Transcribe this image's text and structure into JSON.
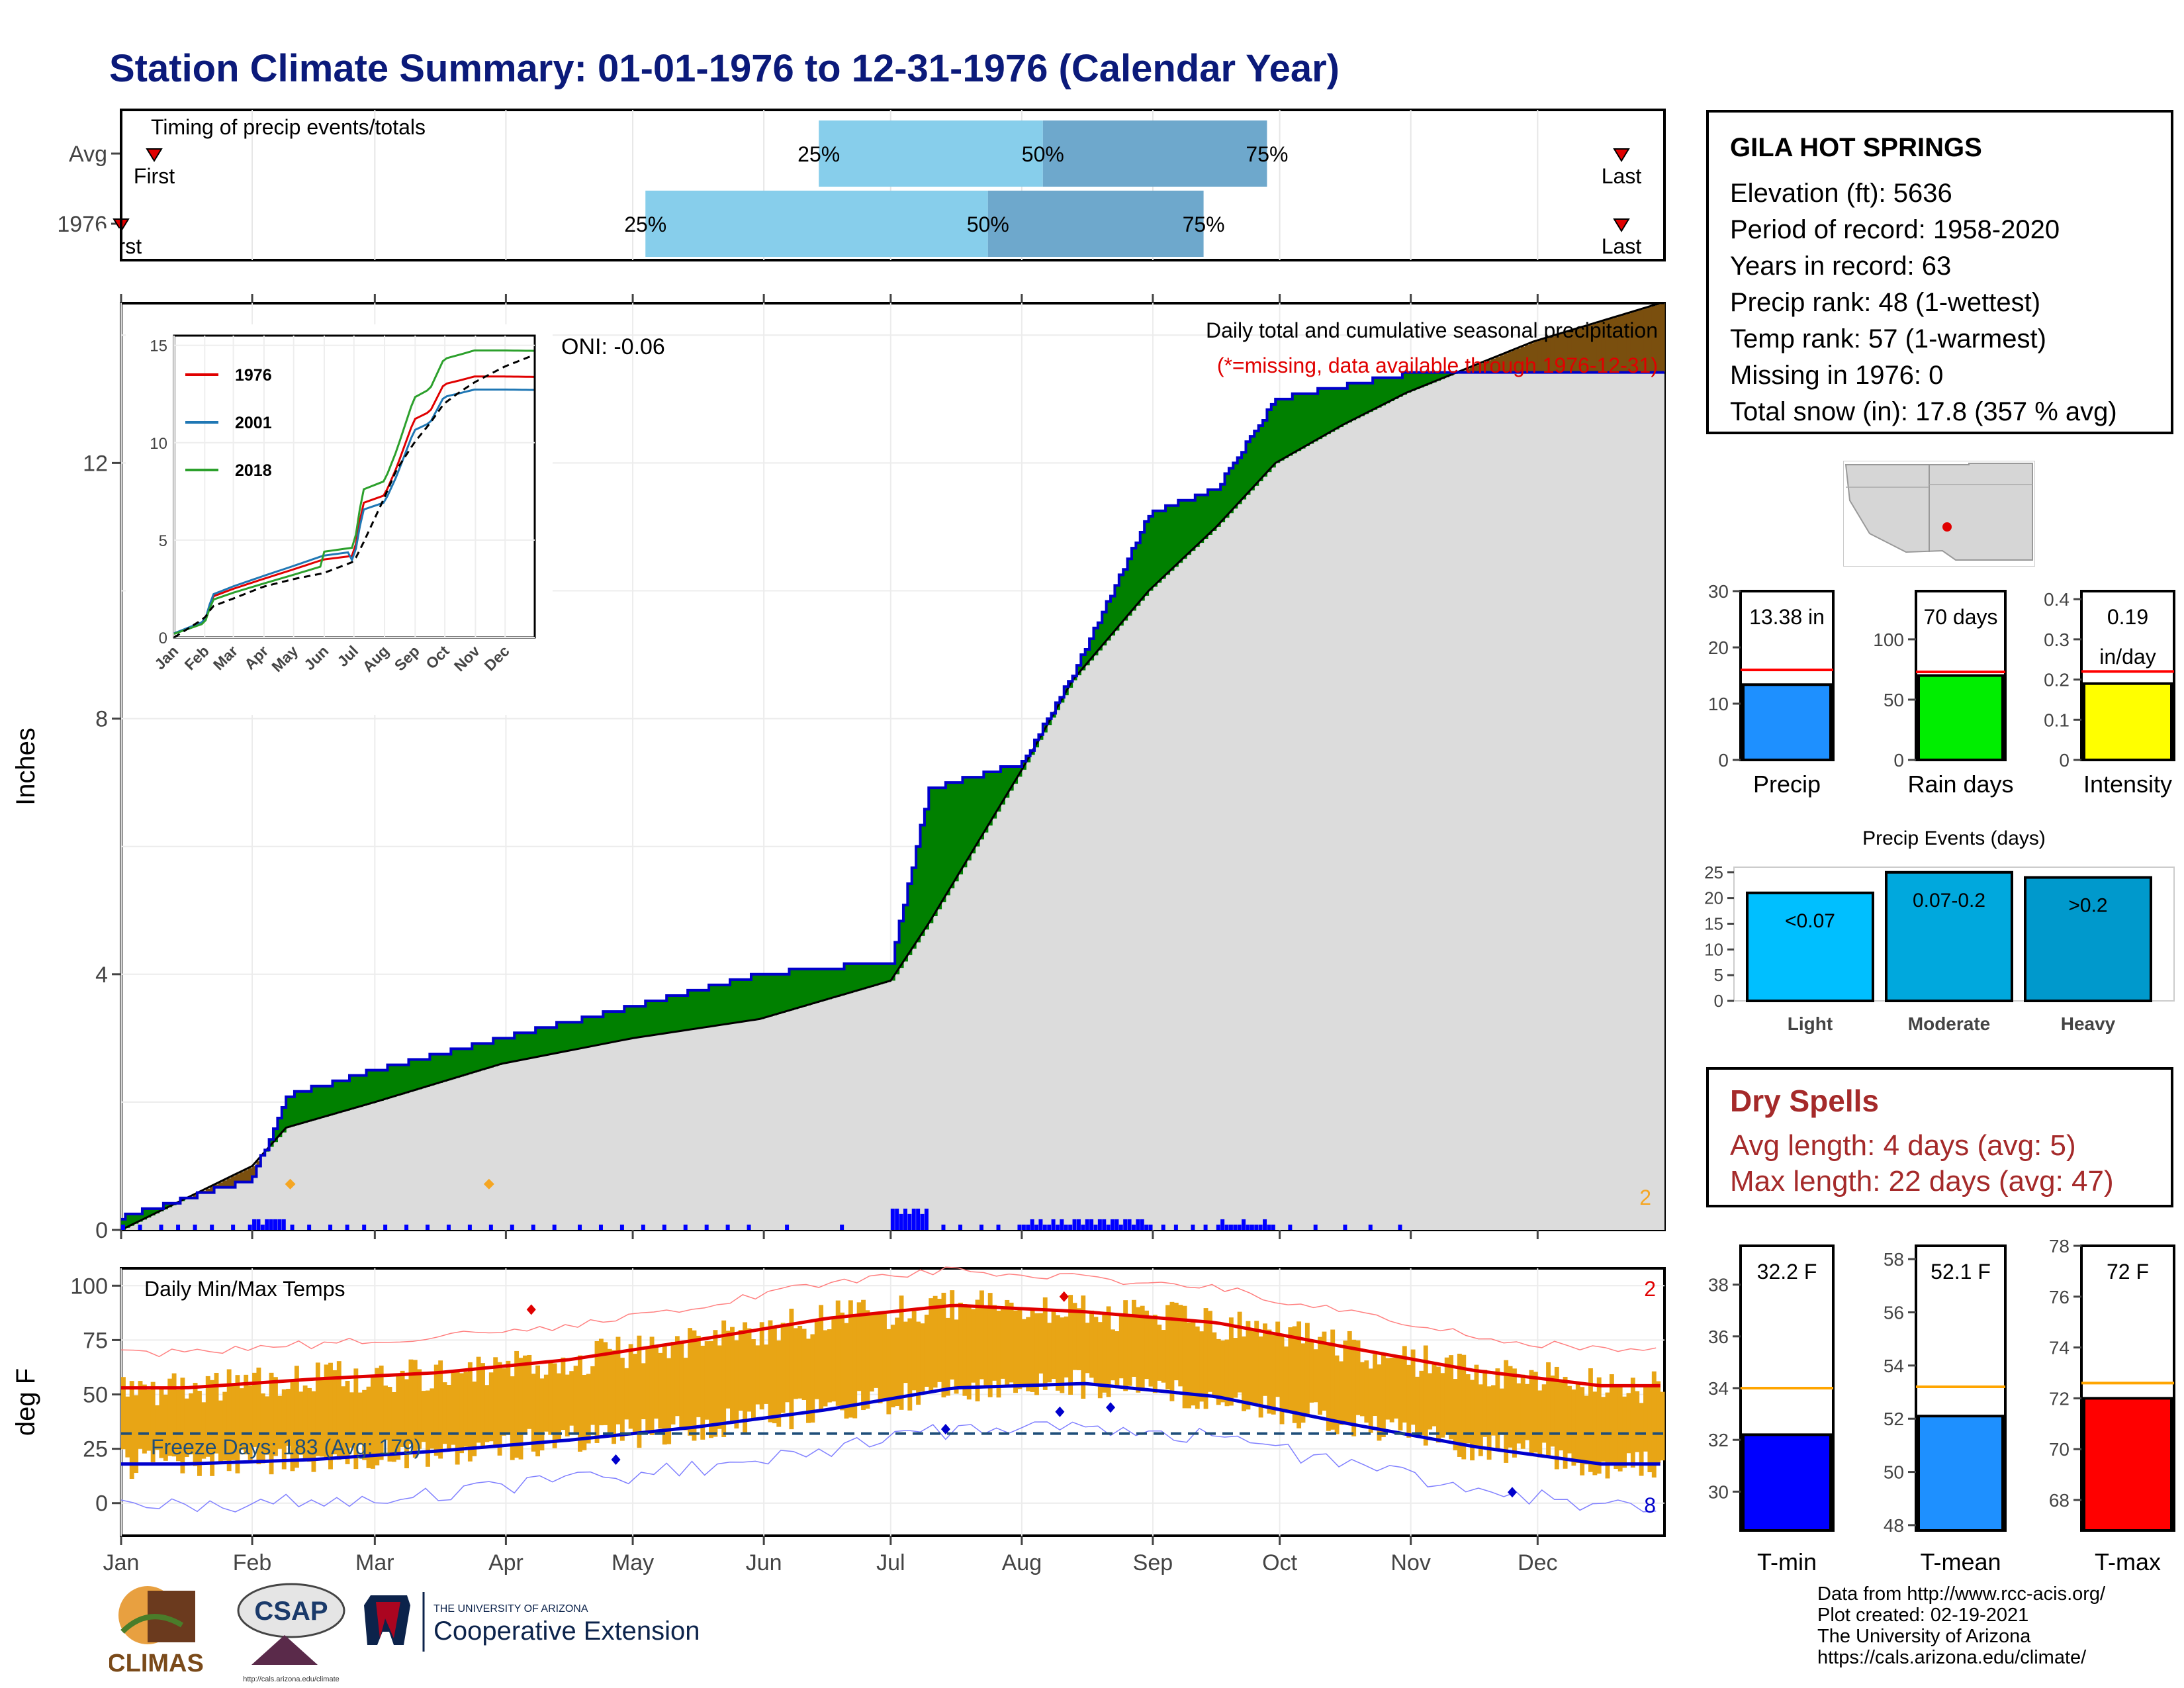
{
  "title": "Station Climate Summary: 01-01-1976 to 12-31-1976 (Calendar Year)",
  "months": [
    "Jan",
    "Feb",
    "Mar",
    "Apr",
    "May",
    "Jun",
    "Jul",
    "Aug",
    "Sep",
    "Oct",
    "Nov",
    "Dec"
  ],
  "timing": {
    "title": "Timing of precip events/totals",
    "rows": [
      {
        "label": "Avg",
        "first_label": "First",
        "last_label": "Last",
        "first_day": 1,
        "last_day": 365,
        "p25_day": 166,
        "p50_day": 219,
        "p75_day": 272,
        "p25_label": "25%",
        "p50_label": "50%",
        "p75_label": "75%"
      },
      {
        "label": "1976",
        "first_label": "First",
        "last_label": "Last",
        "first_day": 1,
        "last_day": 365,
        "p25_day": 125,
        "p50_day": 206,
        "p75_day": 257,
        "p25_label": "25%",
        "p50_label": "50%",
        "p75_label": "75%"
      }
    ],
    "colors": {
      "lower": "#87ceeb",
      "upper": "#6ea8cc",
      "marker": "#e00000"
    }
  },
  "main": {
    "ylabel": "Inches",
    "caption": "Daily total and cumulative seasonal precipitation",
    "missing_note": "(*=missing, data available through 1976-12-31)",
    "oni": "ONI: -0.06",
    "snow_count": "2",
    "yticks": [
      0,
      4,
      8,
      12
    ],
    "ymax": 14.5,
    "colors": {
      "above": "#008000",
      "below": "#7a4f0e",
      "normal": "#dcdcdc",
      "line1976": "#0000cc",
      "daily": "#0000ff",
      "snow": "#f5a623"
    }
  },
  "inset": {
    "yticks": [
      0,
      5,
      10,
      15
    ],
    "legend": [
      "1976",
      "2001",
      "2018"
    ],
    "colors": [
      "#e00000",
      "#1f77b4",
      "#2ca02c"
    ]
  },
  "temps": {
    "title": "Daily Min/Max Temps",
    "ylabel": "deg F",
    "freeze_text": "Freeze Days: 183 (Avg: 179)",
    "record_high_count": "2",
    "record_low_count": "8",
    "yticks": [
      0,
      25,
      50,
      75,
      100
    ],
    "freeze_line": 32,
    "colors": {
      "bar": "#e8a515",
      "max": "#e00000",
      "min": "#0000cc",
      "freeze": "#1f4e79"
    }
  },
  "stats": {
    "station": "GILA HOT SPRINGS",
    "lines": [
      "Elevation (ft): 5636",
      "Period of record: 1958-2020",
      "Years in record: 63",
      "Precip rank: 48 (1-wettest)",
      "Temp rank: 57 (1-warmest)",
      "Missing in 1976: 0",
      "Total snow (in): 17.8 (357 % avg)"
    ]
  },
  "chart_data": [
    {
      "type": "bar",
      "title": "Precip",
      "values": [
        13.38
      ],
      "value_label": "13.38 in",
      "average": 16.0,
      "ylim": [
        0,
        30
      ],
      "yticks": [
        0,
        10,
        20,
        30
      ],
      "color": "#1e90ff"
    },
    {
      "type": "bar",
      "title": "Rain days",
      "values": [
        70
      ],
      "value_label": "70 days",
      "average": 73,
      "ylim": [
        0,
        140
      ],
      "yticks": [
        0,
        50,
        100
      ],
      "color": "#00ee00"
    },
    {
      "type": "bar",
      "title": "Intensity",
      "values": [
        0.19
      ],
      "value_label": "0.19\nin/day",
      "average": 0.22,
      "ylim": [
        0,
        0.42
      ],
      "yticks": [
        0.0,
        0.1,
        0.2,
        0.3,
        0.4
      ],
      "color": "#ffff00"
    },
    {
      "type": "bar",
      "title": "Precip Events (days)",
      "categories": [
        "Light",
        "Moderate",
        "Heavy"
      ],
      "labels": [
        "<0.07",
        "0.07-0.2",
        ">0.2"
      ],
      "values": [
        21,
        25,
        24
      ],
      "ylim": [
        0,
        26
      ],
      "yticks": [
        0,
        5,
        10,
        15,
        20,
        25
      ],
      "colors": [
        "#00bfff",
        "#00a8dd",
        "#0099cc"
      ]
    },
    {
      "type": "bar",
      "title": "T-min",
      "values": [
        32.2
      ],
      "value_label": "32.2 F",
      "average": 34.0,
      "ylim": [
        28.5,
        39.5
      ],
      "yticks": [
        30,
        32,
        34,
        36,
        38
      ],
      "color": "#0000ff"
    },
    {
      "type": "bar",
      "title": "T-mean",
      "values": [
        52.1
      ],
      "value_label": "52.1 F",
      "average": 53.2,
      "ylim": [
        47.8,
        58.5
      ],
      "yticks": [
        48,
        50,
        52,
        54,
        56,
        58
      ],
      "color": "#1e90ff"
    },
    {
      "type": "bar",
      "title": "T-max",
      "values": [
        72
      ],
      "value_label": "72 F",
      "average": 72.6,
      "ylim": [
        66.8,
        78
      ],
      "yticks": [
        68,
        70,
        72,
        74,
        76,
        78
      ],
      "color": "#ff0000"
    },
    {
      "type": "area",
      "title": "Daily total and cumulative seasonal precipitation",
      "x_unit": "day of year",
      "x": [
        1,
        32,
        40,
        61,
        91,
        122,
        152,
        183,
        192,
        214,
        226,
        244,
        260,
        274,
        290,
        305,
        335,
        365
      ],
      "series": [
        {
          "name": "1976",
          "values": [
            0.2,
            0.8,
            2.1,
            2.5,
            3.0,
            3.5,
            4.0,
            4.2,
            6.9,
            7.3,
            8.7,
            11.2,
            11.6,
            13.0,
            13.2,
            13.4,
            13.4,
            13.38
          ]
        },
        {
          "values": [
            0.0,
            1.0,
            1.6,
            2.0,
            2.6,
            3.0,
            3.3,
            3.9,
            4.8,
            7.2,
            8.6,
            10.0,
            11.0,
            12.0,
            12.6,
            13.1,
            13.9,
            14.5
          ]
        }
      ]
    },
    {
      "type": "line",
      "title": "Daily Min/Max Temps",
      "x": [
        "Jan",
        "Feb",
        "Mar",
        "Apr",
        "May",
        "Jun",
        "Jul",
        "Aug",
        "Sep",
        "Oct",
        "Nov",
        "Dec"
      ],
      "series": [
        {
          "values": [
            53,
            57,
            60,
            66,
            75,
            85,
            91,
            88,
            83,
            72,
            61,
            54
          ]
        },
        {
          "values": [
            18,
            20,
            24,
            29,
            35,
            43,
            53,
            55,
            49,
            37,
            26,
            18
          ]
        }
      ]
    }
  ],
  "dry_spells": {
    "title": "Dry Spells",
    "avg": "Avg length: 4 days (avg: 5)",
    "max": "Max length: 22 days (avg: 47)"
  },
  "footer": [
    "Data from http://www.rcc-acis.org/",
    "Plot created: 02-19-2021",
    "The University of Arizona",
    "https://cals.arizona.edu/climate/"
  ],
  "logos": {
    "climas": "CLIMAS",
    "csap": "CSAP",
    "csap_url": "http://cals.arizona.edu/climate",
    "ua_small": "THE UNIVERSITY OF ARIZONA",
    "ua_big": "Cooperative Extension"
  }
}
